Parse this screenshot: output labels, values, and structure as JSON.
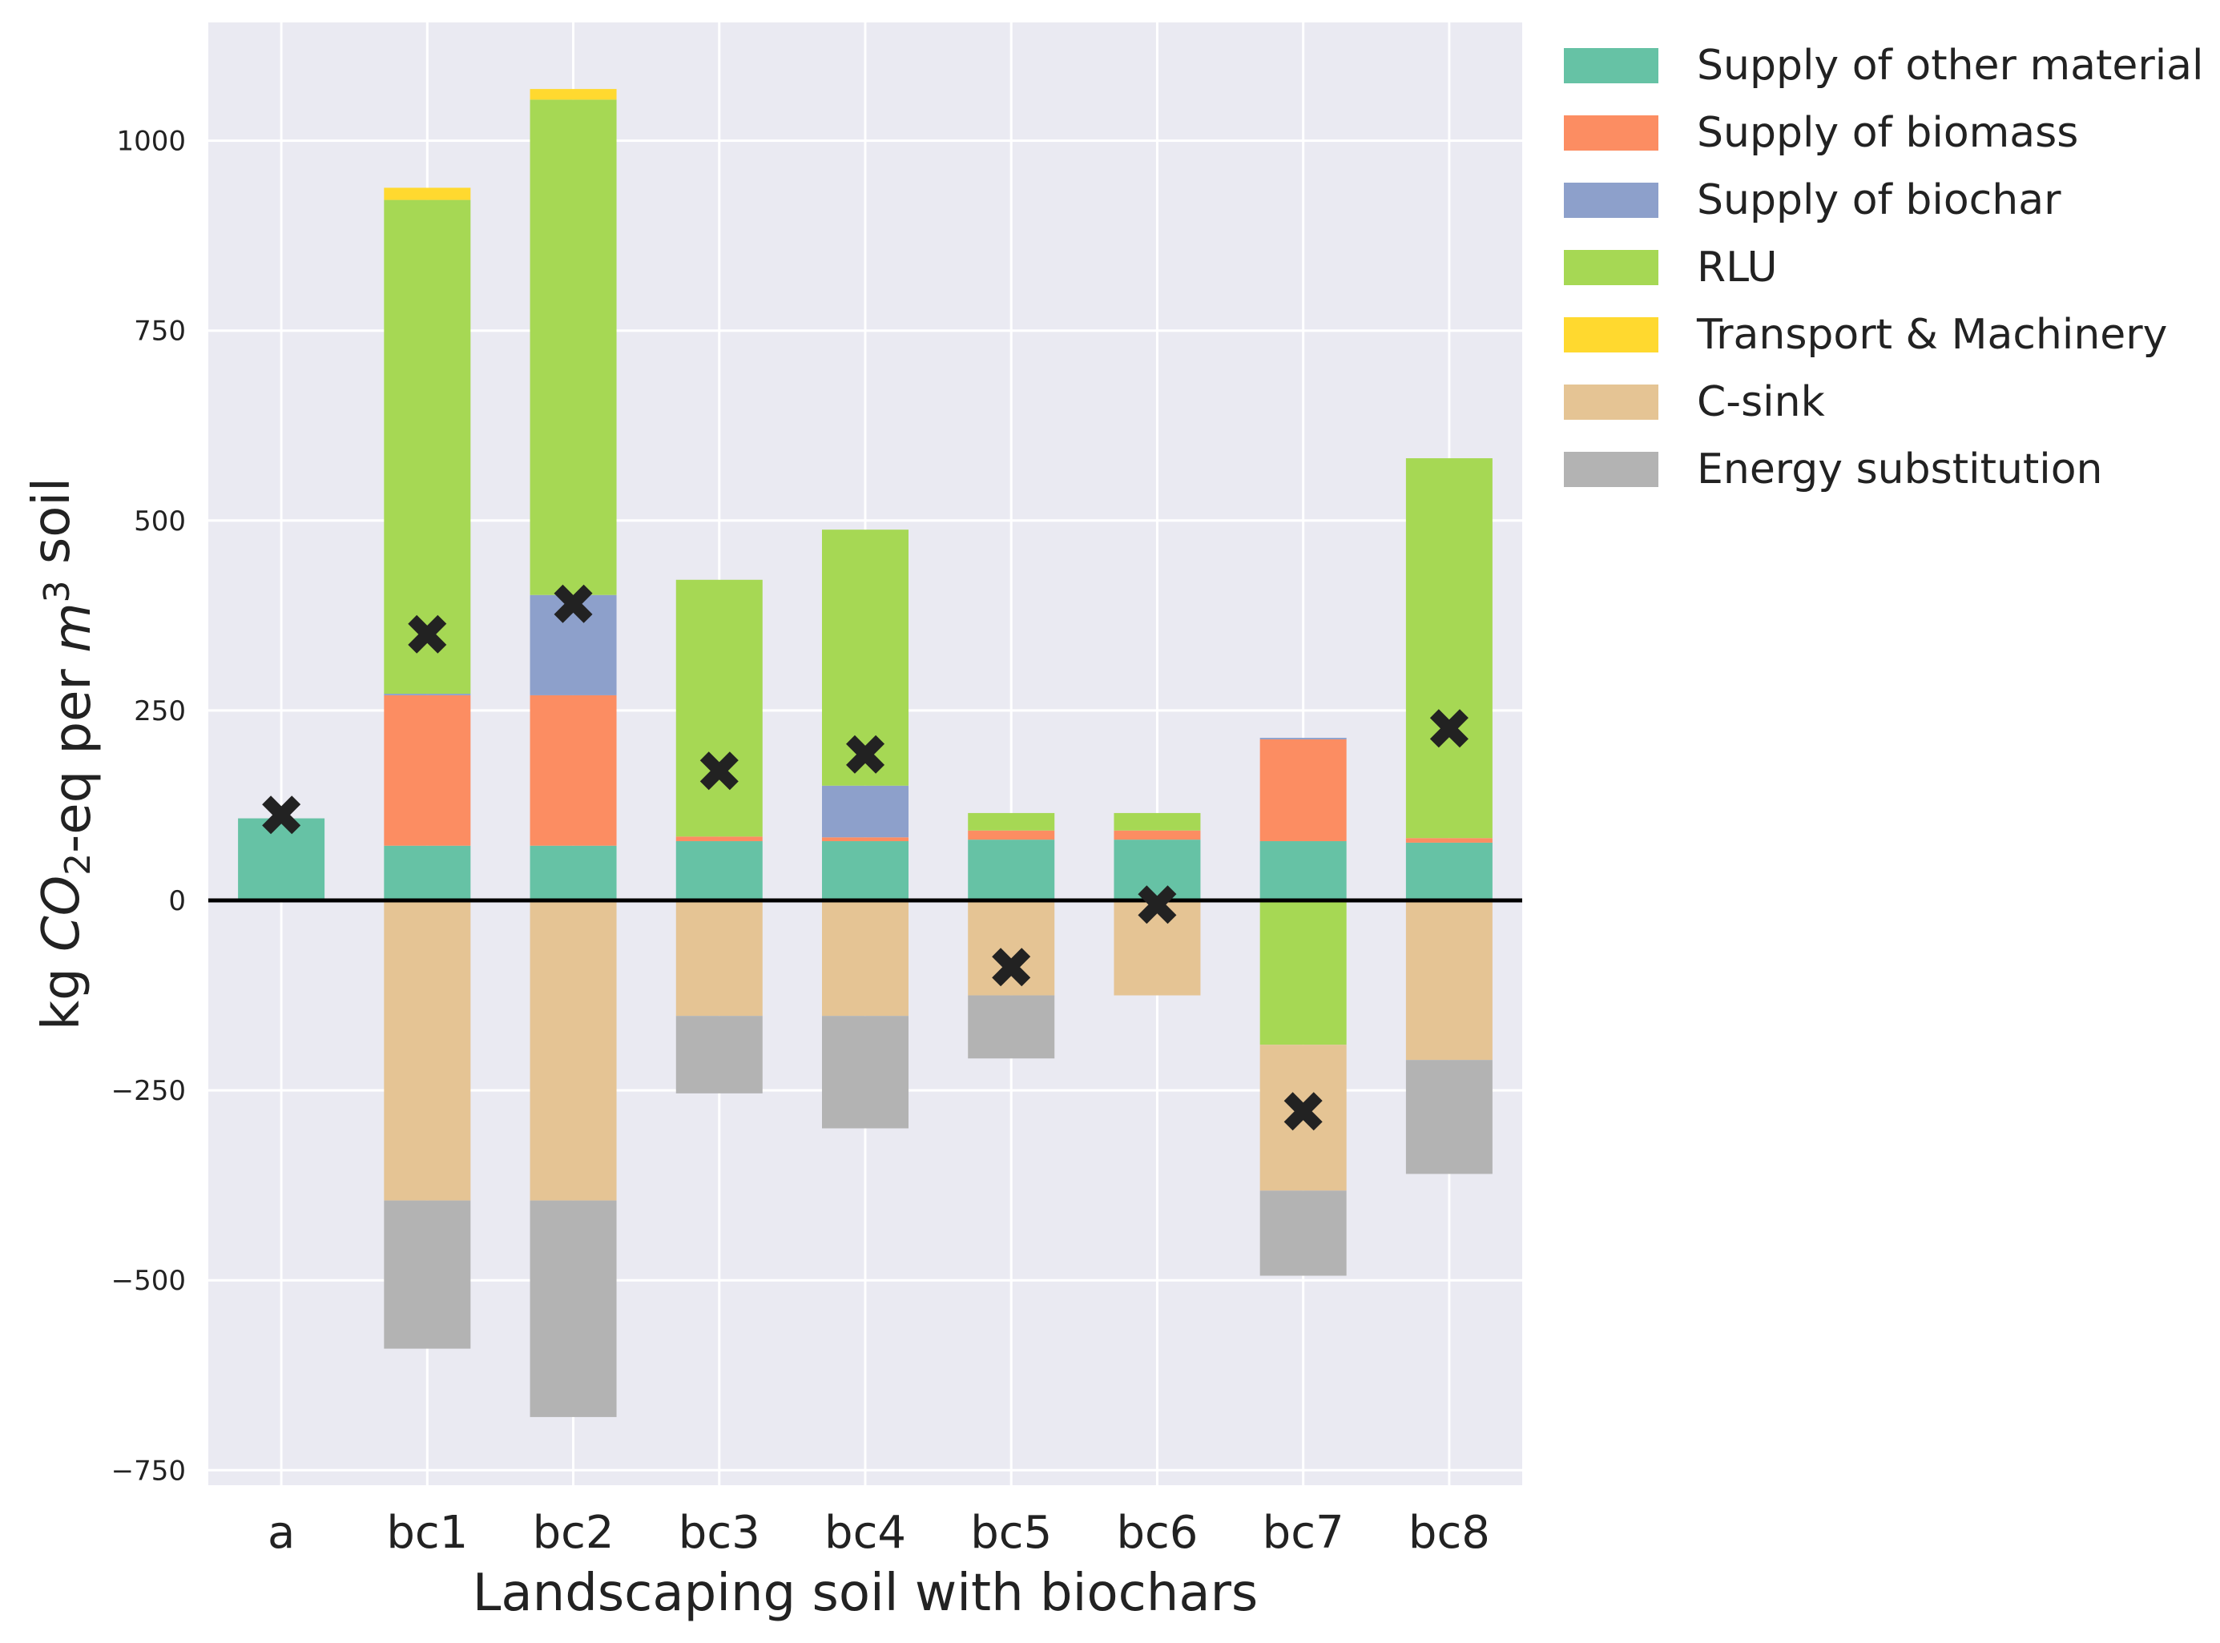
{
  "chart_data": {
    "type": "bar",
    "stacked": true,
    "xlabel": "Landscaping soil with biochars",
    "ylabel": {
      "parts": [
        {
          "text": "kg ",
          "style": "normal"
        },
        {
          "text": "CO",
          "style": "italic"
        },
        {
          "text": "2",
          "style": "sub"
        },
        {
          "text": "-eq per ",
          "style": "normal"
        },
        {
          "text": "m",
          "style": "italic"
        },
        {
          "text": "3",
          "style": "sup"
        },
        {
          "text": " soil",
          "style": "normal"
        }
      ]
    },
    "categories": [
      "a",
      "bc1",
      "bc2",
      "bc3",
      "bc4",
      "bc5",
      "bc6",
      "bc7",
      "bc8"
    ],
    "ylim": [
      -770,
      1150
    ],
    "yticks": [
      -750,
      -500,
      -250,
      0,
      250,
      500,
      750,
      1000
    ],
    "ytick_labels": [
      "−750",
      "−500",
      "−250",
      "0",
      "250",
      "500",
      "750",
      "1000"
    ],
    "grid": true,
    "background": "#eaeaf2",
    "legend_position": "outside-right-top",
    "series": [
      {
        "name": "Supply of other material",
        "color": "#66c2a5",
        "values": [
          108,
          72,
          72,
          78,
          78,
          80,
          80,
          78,
          76
        ]
      },
      {
        "name": "Supply of biomass",
        "color": "#fc8d62",
        "values": [
          0,
          198,
          198,
          6,
          5,
          12,
          12,
          134,
          6
        ]
      },
      {
        "name": "Supply of biochar",
        "color": "#8da0cb",
        "values": [
          0,
          2,
          132,
          0,
          68,
          0,
          0,
          2,
          0
        ]
      },
      {
        "name": "RLU",
        "color": "#a6d854",
        "values": [
          0,
          650,
          652,
          338,
          337,
          23,
          23,
          -190,
          500
        ]
      },
      {
        "name": "Transport & Machinery",
        "color": "#ffd92f",
        "values": [
          0,
          16,
          14,
          0,
          0,
          0,
          0,
          0,
          0
        ]
      },
      {
        "name": "C-sink",
        "color": "#e5c494",
        "values": [
          0,
          -395,
          -395,
          -152,
          -152,
          -125,
          -125,
          -192,
          -210
        ]
      },
      {
        "name": "Energy substitution",
        "color": "#b3b3b3",
        "values": [
          0,
          -195,
          -285,
          -102,
          -148,
          -83,
          0,
          -112,
          -150
        ]
      }
    ],
    "net_marker": {
      "symbol": "✖",
      "color": "#000000",
      "values": [
        110,
        348,
        388,
        168,
        190,
        -90,
        -8,
        -280,
        224
      ]
    }
  }
}
